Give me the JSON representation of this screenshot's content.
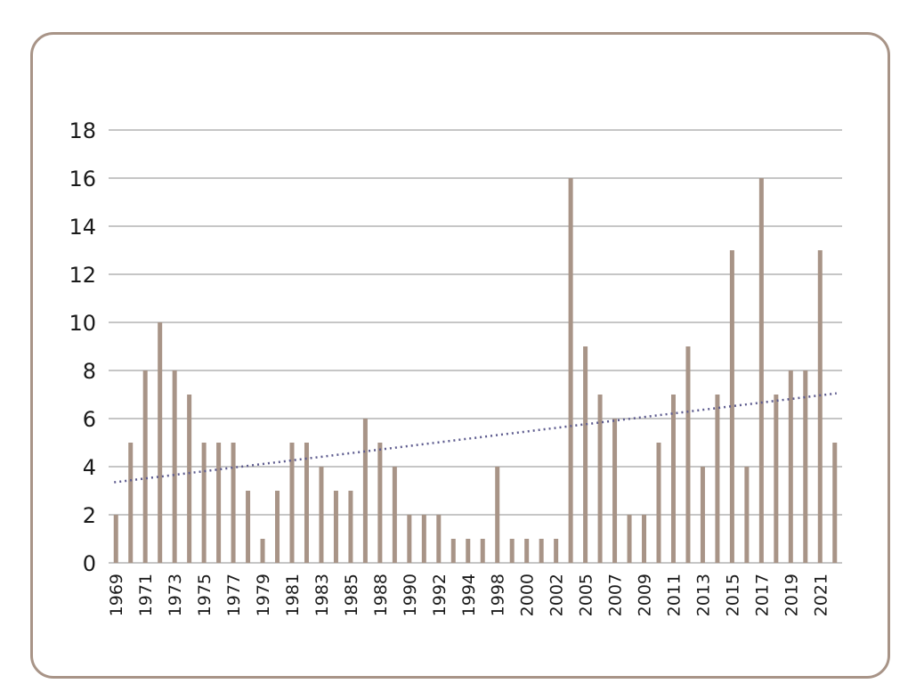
{
  "chart_data": {
    "type": "bar",
    "title": "",
    "xlabel": "",
    "ylabel": "",
    "ylim": [
      0,
      18
    ],
    "yticks": [
      "0",
      "2",
      "4",
      "6",
      "8",
      "10",
      "12",
      "14",
      "16",
      "18"
    ],
    "grid": true,
    "colors": {
      "bar": "#a89487",
      "trend": "#5d5b8e",
      "grid": "#b3b3b3",
      "frame": "#a89487"
    },
    "categories": [
      "1969",
      "1970",
      "1971",
      "1972",
      "1973",
      "1974",
      "1975",
      "1976",
      "1977",
      "1978",
      "1979",
      "1980",
      "1981",
      "1982",
      "1983",
      "1984",
      "1985",
      "1987",
      "1988",
      "1989",
      "1990",
      "1991",
      "1992",
      "1993",
      "1994",
      "1996",
      "1998",
      "1999",
      "2000",
      "2001",
      "2002",
      "2004",
      "2005",
      "2006",
      "2007",
      "2008",
      "2009",
      "2010",
      "2011",
      "2012",
      "2013",
      "2014",
      "2015",
      "2016",
      "2017",
      "2018",
      "2019",
      "2020",
      "2021",
      "2022"
    ],
    "tick_labels": [
      "1969",
      "1971",
      "1973",
      "1975",
      "1977",
      "1979",
      "1981",
      "1983",
      "1985",
      "1988",
      "1990",
      "1992",
      "1994",
      "1998",
      "2000",
      "2002",
      "2005",
      "2007",
      "2009",
      "2011",
      "2013",
      "2015",
      "2017",
      "2019",
      "2021"
    ],
    "values": [
      2,
      5,
      8,
      10,
      8,
      7,
      5,
      5,
      5,
      3,
      1,
      3,
      5,
      5,
      4,
      3,
      3,
      6,
      5,
      4,
      2,
      2,
      2,
      1,
      1,
      1,
      4,
      1,
      1,
      1,
      1,
      16,
      9,
      7,
      6,
      2,
      2,
      5,
      7,
      9,
      4,
      7,
      13,
      4,
      16,
      7,
      8,
      8,
      13,
      5
    ],
    "trendline": {
      "type": "linear",
      "start": 3.35,
      "end": 7.05
    }
  }
}
